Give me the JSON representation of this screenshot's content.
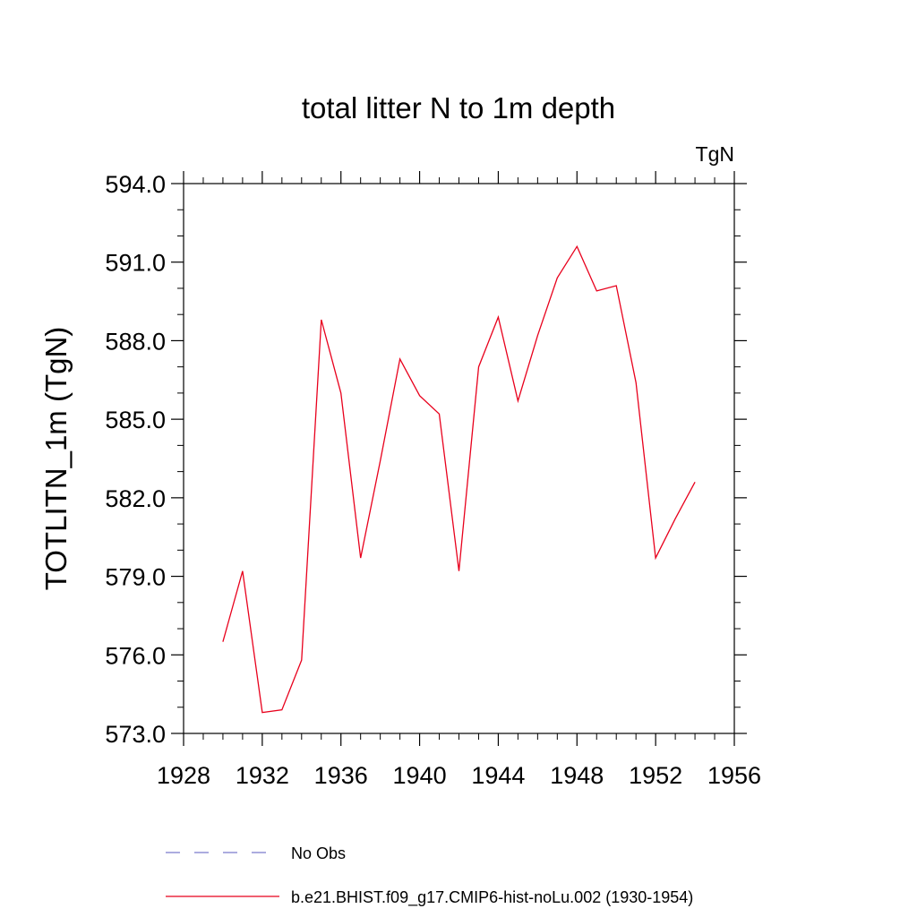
{
  "chart_data": {
    "type": "line",
    "title": "total litter N to 1m depth",
    "units": "TgN",
    "ylabel": "TOTLITN_1m  (TgN)",
    "xlabel": "",
    "xlim": [
      1928,
      1956
    ],
    "ylim": [
      573.0,
      594.0
    ],
    "x_ticks": [
      1928,
      1932,
      1936,
      1940,
      1944,
      1948,
      1952,
      1956
    ],
    "x_tick_labels": [
      "1928",
      "1932",
      "1936",
      "1940",
      "1944",
      "1948",
      "1952",
      "1956"
    ],
    "y_ticks": [
      573.0,
      576.0,
      579.0,
      582.0,
      585.0,
      588.0,
      591.0,
      594.0
    ],
    "y_tick_labels": [
      "573.0",
      "576.0",
      "579.0",
      "582.0",
      "585.0",
      "588.0",
      "591.0",
      "594.0"
    ],
    "grid": false,
    "legend_position": "bottom",
    "series": [
      {
        "name": "b.e21.BHIST.f09_g17.CMIP6-hist-noLu.002 (1930-1954)",
        "color": "#e8001c",
        "dash": "solid",
        "x": [
          1930,
          1931,
          1932,
          1933,
          1934,
          1935,
          1936,
          1937,
          1938,
          1939,
          1940,
          1941,
          1942,
          1943,
          1944,
          1945,
          1946,
          1947,
          1948,
          1949,
          1950,
          1951,
          1952,
          1953,
          1954
        ],
        "y": [
          576.5,
          579.2,
          573.8,
          573.9,
          575.8,
          588.8,
          586.0,
          579.7,
          583.4,
          587.3,
          585.9,
          585.2,
          579.2,
          587.0,
          588.9,
          585.7,
          588.2,
          590.4,
          591.6,
          589.9,
          590.1,
          586.4,
          579.7,
          581.2,
          582.6
        ]
      }
    ],
    "legend": [
      {
        "label": "No Obs",
        "color": "#7a7acc",
        "dash": "dashed"
      },
      {
        "label": "b.e21.BHIST.f09_g17.CMIP6-hist-noLu.002 (1930-1954)",
        "color": "#e8001c",
        "dash": "solid"
      }
    ]
  }
}
